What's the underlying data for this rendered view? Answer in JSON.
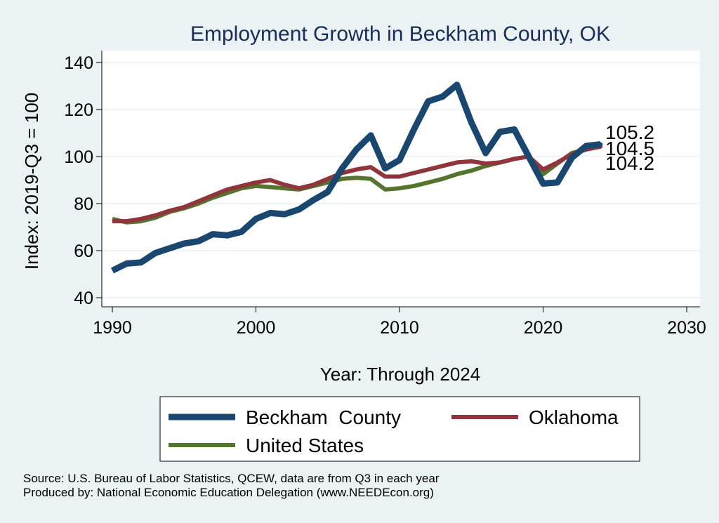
{
  "chart_data": {
    "type": "line",
    "title": "Employment Growth in Beckham County, OK",
    "xlabel": "Year: Through 2024",
    "ylabel": "Index: 2019-Q3 = 100",
    "xlim": [
      1990,
      2030
    ],
    "ylim": [
      38,
      145
    ],
    "xticks": [
      1990,
      2000,
      2010,
      2020,
      2030
    ],
    "yticks": [
      40,
      60,
      80,
      100,
      120,
      140
    ],
    "grid": true,
    "legend_position": "bottom",
    "x": [
      1990,
      1991,
      1992,
      1993,
      1994,
      1995,
      1996,
      1997,
      1998,
      1999,
      2000,
      2001,
      2002,
      2003,
      2004,
      2005,
      2006,
      2007,
      2008,
      2009,
      2010,
      2011,
      2012,
      2013,
      2014,
      2015,
      2016,
      2017,
      2018,
      2019,
      2020,
      2021,
      2022,
      2023,
      2024
    ],
    "series": [
      {
        "name": "Beckham  County",
        "color": "#1a476f",
        "values": [
          51.5,
          54.5,
          55.0,
          59.0,
          61.0,
          63.0,
          64.0,
          67.0,
          66.5,
          68.0,
          73.5,
          76.0,
          75.5,
          77.5,
          81.5,
          85.0,
          95.0,
          103.0,
          109.0,
          95.0,
          98.5,
          111.5,
          123.5,
          125.5,
          130.5,
          114.5,
          101.5,
          110.5,
          111.5,
          100.0,
          88.5,
          89.0,
          99.5,
          104.5,
          105.2
        ],
        "end_label": "105.2"
      },
      {
        "name": "Oklahoma",
        "color": "#90353b",
        "values": [
          72.5,
          72.5,
          73.5,
          75.0,
          77.0,
          78.5,
          81.0,
          83.5,
          86.0,
          87.5,
          89.0,
          90.0,
          88.0,
          86.5,
          88.0,
          90.5,
          93.0,
          94.5,
          95.5,
          91.5,
          91.5,
          93.0,
          94.5,
          96.0,
          97.5,
          98.0,
          97.0,
          97.5,
          99.0,
          100.0,
          94.5,
          97.5,
          101.0,
          103.0,
          104.2
        ],
        "end_label": "104.2"
      },
      {
        "name": "United States",
        "color": "#55752f",
        "values": [
          73.5,
          72.0,
          72.5,
          74.0,
          76.5,
          78.0,
          80.0,
          82.5,
          84.5,
          86.5,
          87.5,
          87.0,
          86.5,
          86.0,
          87.5,
          89.0,
          90.5,
          91.0,
          90.5,
          86.0,
          86.5,
          87.5,
          89.0,
          90.5,
          92.5,
          94.0,
          96.0,
          97.5,
          99.0,
          100.0,
          92.5,
          97.0,
          101.5,
          103.0,
          104.5
        ],
        "end_label": "104.5"
      }
    ]
  },
  "notes": {
    "source": "Source: U.S. Bureau of Labor Statistics, QCEW, data are from Q3 in each year",
    "produced": "Produced by: National Economic Education Delegation (www.NEEDEcon.org)"
  }
}
